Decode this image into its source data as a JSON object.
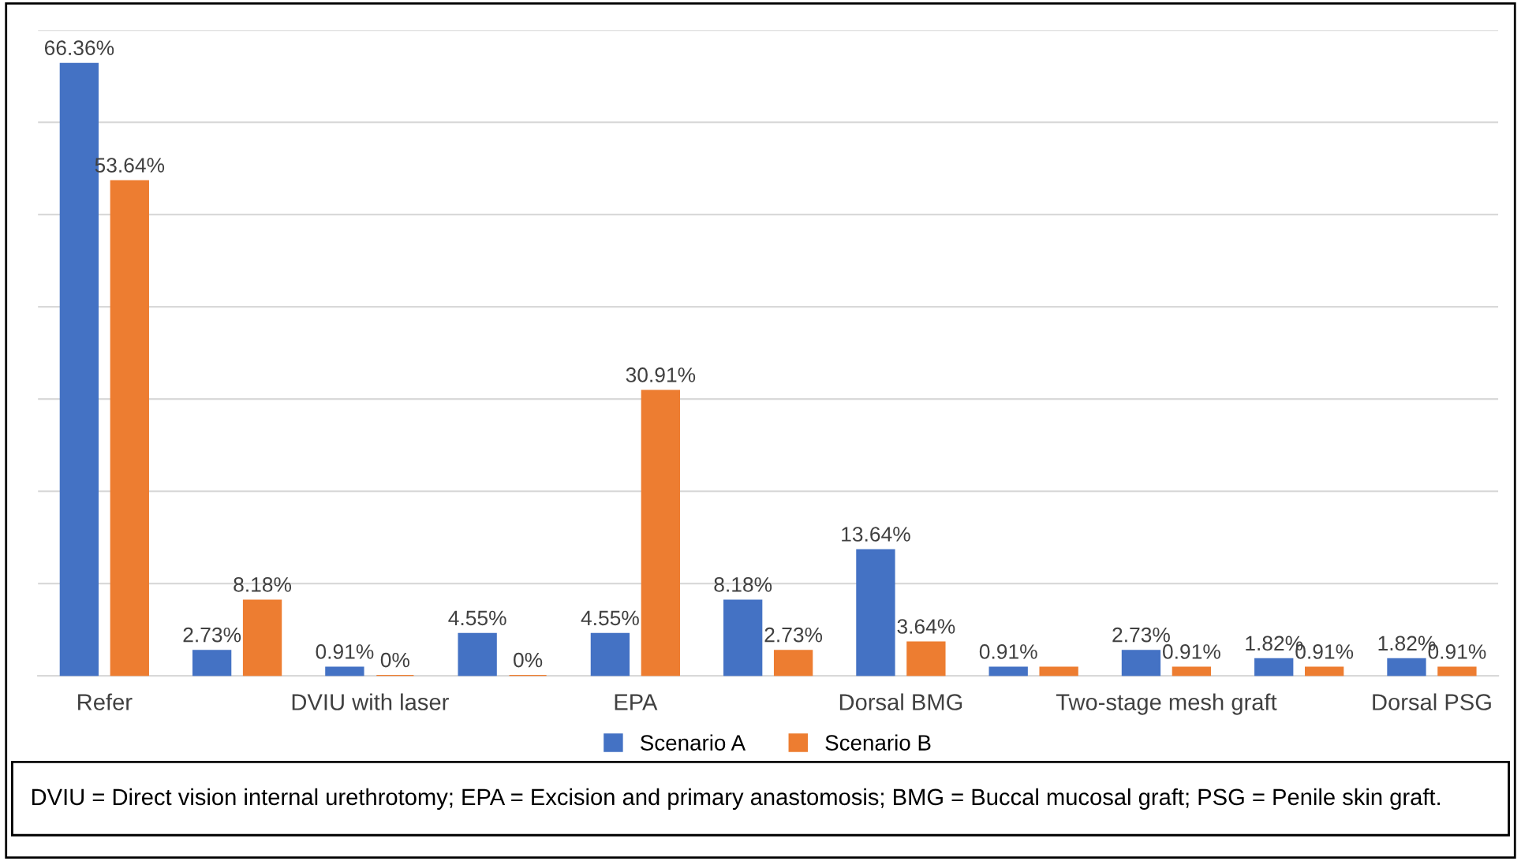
{
  "chart_data": {
    "type": "bar",
    "categories": [
      "Refer",
      null,
      "DVIU with laser",
      null,
      "EPA",
      null,
      "Dorsal BMG",
      null,
      "Two-stage mesh graft",
      null,
      "Dorsal PSG"
    ],
    "series": [
      {
        "name": "Scenario A",
        "color": "#4472c4",
        "values": [
          66.36,
          2.73,
          0.91,
          4.55,
          4.55,
          8.18,
          13.64,
          0.91,
          2.73,
          1.82,
          1.82
        ],
        "value_labels": [
          "66.36%",
          "2.73%",
          "0.91%",
          "4.55%",
          "4.55%",
          "8.18%",
          "13.64%",
          "0.91%",
          "2.73%",
          "1.82%",
          "1.82%"
        ]
      },
      {
        "name": "Scenario B",
        "color": "#ed7d31",
        "values": [
          53.64,
          8.18,
          0,
          0,
          30.91,
          2.73,
          3.64,
          0.91,
          0.91,
          0.91,
          0.91
        ],
        "value_labels": [
          "53.64%",
          "8.18%",
          "0%",
          "0%",
          "30.91%",
          "2.73%",
          "3.64%",
          null,
          "0.91%",
          "0.91%",
          "0.91%"
        ]
      }
    ],
    "ylim": [
      0,
      70
    ],
    "yticks": [
      {
        "value": 0,
        "label": null
      },
      {
        "value": 10,
        "label": null
      },
      {
        "value": 20,
        "label": null
      },
      {
        "value": 30,
        "label": null
      },
      {
        "value": 40,
        "label": null
      },
      {
        "value": 50,
        "label": null
      },
      {
        "value": 60,
        "label": null
      },
      {
        "value": 70,
        "label": null
      }
    ],
    "tick_labels": "x",
    "grid": "y",
    "legend": "bottom",
    "annotations": [
      "DVIU = Direct vision internal urethrotomy; EPA = Excision and primary anastomosis; BMG = Buccal mucosal graft; PSG = Penile skin graft."
    ]
  }
}
